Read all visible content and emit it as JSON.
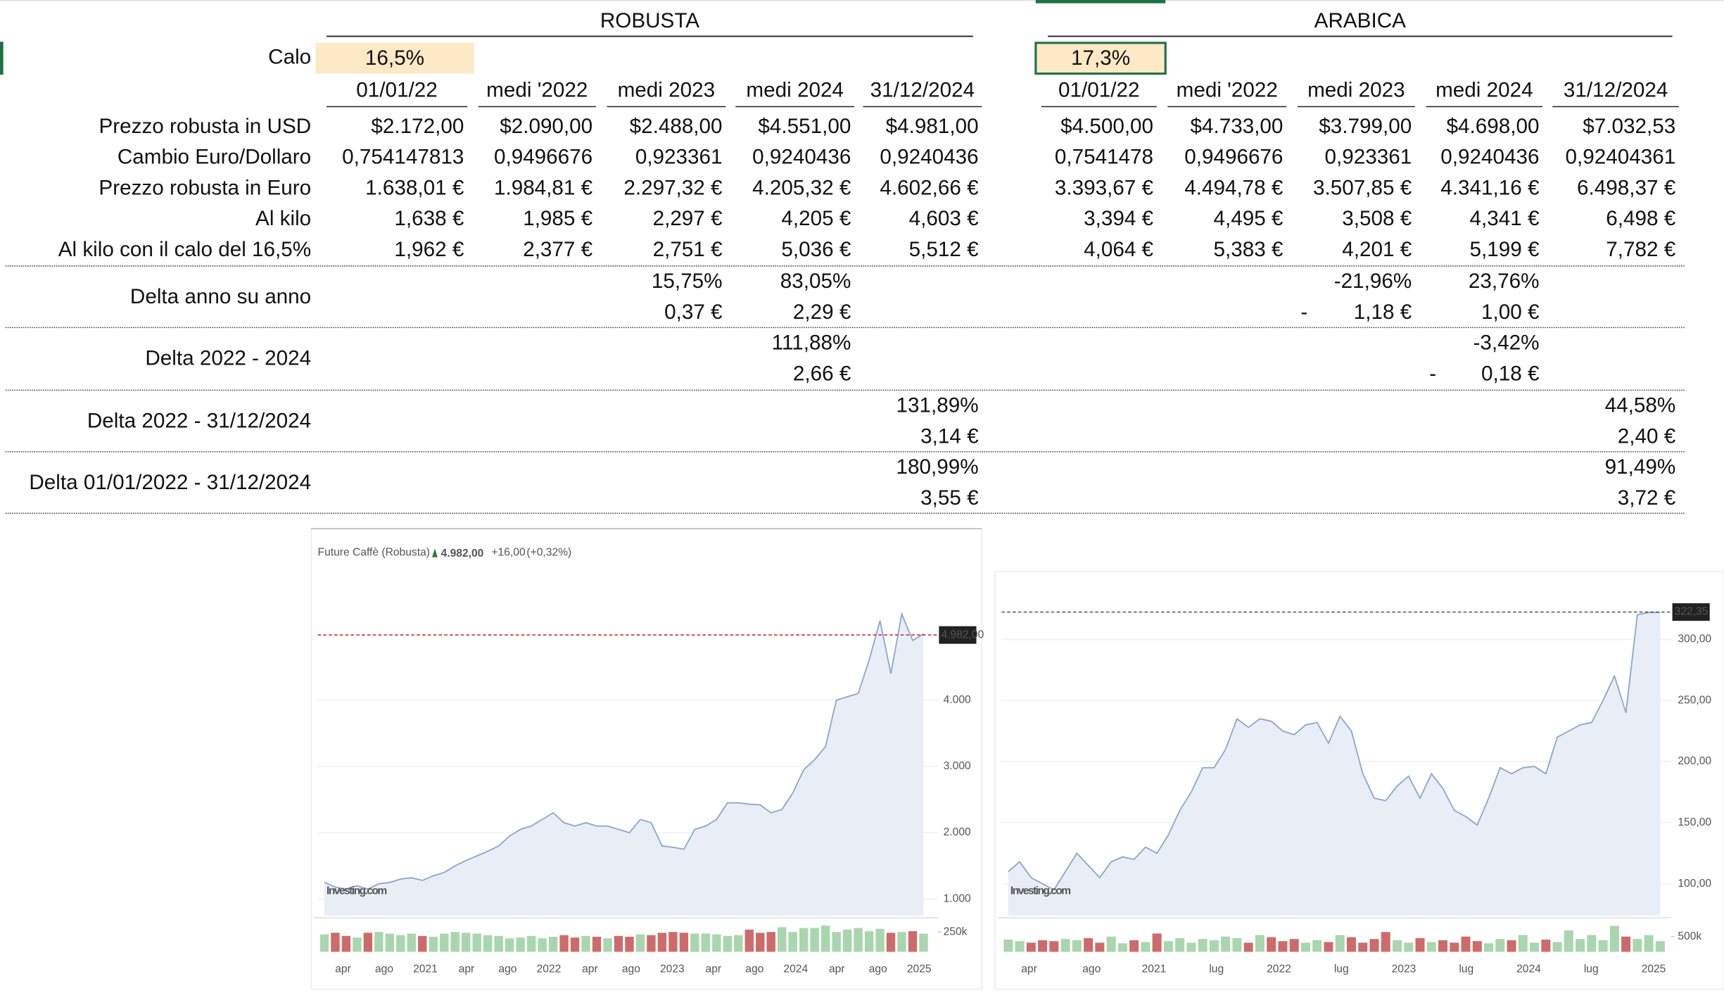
{
  "table": {
    "calo_label": "Calo",
    "row_labels": [
      "Prezzo robusta in USD",
      "Cambio Euro/Dollaro",
      "Prezzo robusta in Euro",
      "Al kilo",
      "Al kilo con il calo del 16,5%"
    ],
    "sections": [
      {
        "title": "ROBUSTA",
        "calo": "16,5%",
        "columns": [
          "01/01/22",
          "medi '2022",
          "medi 2023",
          "medi 2024",
          "31/12/2024"
        ],
        "rows": [
          [
            "$2.172,00",
            "$2.090,00",
            "$2.488,00",
            "$4.551,00",
            "$4.981,00"
          ],
          [
            "0,754147813",
            "0,9496676",
            "0,923361",
            "0,9240436",
            "0,9240436"
          ],
          [
            "1.638,01 €",
            "1.984,81 €",
            "2.297,32 €",
            "4.205,32 €",
            "4.602,66 €"
          ],
          [
            "1,638 €",
            "1,985 €",
            "2,297 €",
            "4,205 €",
            "4,603 €"
          ],
          [
            "1,962 €",
            "2,377 €",
            "2,751 €",
            "5,036 €",
            "5,512 €"
          ]
        ]
      },
      {
        "title": "ARABICA",
        "calo": "17,3%",
        "columns": [
          "01/01/22",
          "medi '2022",
          "medi 2023",
          "medi 2024",
          "31/12/2024"
        ],
        "rows": [
          [
            "$4.500,00",
            "$4.733,00",
            "$3.799,00",
            "$4.698,00",
            "$7.032,53"
          ],
          [
            "0,7541478",
            "0,9496676",
            "0,923361",
            "0,9240436",
            "0,92404361"
          ],
          [
            "3.393,67 €",
            "4.494,78 €",
            "3.507,85 €",
            "4.341,16 €",
            "6.498,37 €"
          ],
          [
            "3,394 €",
            "4,495 €",
            "3,508 €",
            "4,341 €",
            "6,498 €"
          ],
          [
            "4,064 €",
            "5,383 €",
            "4,201 €",
            "5,199 €",
            "7,782 €"
          ]
        ]
      }
    ],
    "deltas": [
      {
        "label": "Delta anno su anno",
        "sections": [
          [
            [
              null,
              null,
              "15,75%",
              "83,05%",
              null
            ],
            [
              null,
              null,
              "0,37 €",
              "2,29 €",
              null
            ]
          ],
          [
            [
              null,
              null,
              "-21,96%",
              "23,76%",
              null
            ],
            [
              null,
              null,
              {
                "sign": "-",
                "amount": "1,18 €"
              },
              "1,00 €",
              null
            ]
          ]
        ]
      },
      {
        "label": "Delta 2022 - 2024",
        "sections": [
          [
            [
              null,
              null,
              null,
              "111,88%",
              null
            ],
            [
              null,
              null,
              null,
              "2,66 €",
              null
            ]
          ],
          [
            [
              null,
              null,
              null,
              "-3,42%",
              null
            ],
            [
              null,
              null,
              null,
              {
                "sign": "-",
                "amount": "0,18 €"
              },
              null
            ]
          ]
        ]
      },
      {
        "label": "Delta 2022 - 31/12/2024",
        "sections": [
          [
            [
              null,
              null,
              null,
              null,
              "131,89%"
            ],
            [
              null,
              null,
              null,
              null,
              "3,14 €"
            ]
          ],
          [
            [
              null,
              null,
              null,
              null,
              "44,58%"
            ],
            [
              null,
              null,
              null,
              null,
              "2,40 €"
            ]
          ]
        ]
      },
      {
        "label": "Delta 01/01/2022 - 31/12/2024",
        "sections": [
          [
            [
              null,
              null,
              null,
              null,
              "180,99%"
            ],
            [
              null,
              null,
              null,
              null,
              "3,55 €"
            ]
          ],
          [
            [
              null,
              null,
              null,
              null,
              "91,49%"
            ],
            [
              null,
              null,
              null,
              null,
              "3,72 €"
            ]
          ]
        ]
      }
    ]
  },
  "chart_data": [
    {
      "type": "line",
      "title": "Future Caffè (Robusta)",
      "price": "4.982,00",
      "change": "+16,00",
      "change_pct": "(+0,32%)",
      "watermark": "Investing.com",
      "color": "#8fa9c8",
      "area_color": "#e9eef6",
      "values": [
        1250,
        1180,
        1150,
        1200,
        1150,
        1230,
        1250,
        1300,
        1320,
        1280,
        1350,
        1400,
        1500,
        1580,
        1650,
        1720,
        1800,
        1950,
        2050,
        2100,
        2200,
        2300,
        2150,
        2100,
        2150,
        2100,
        2100,
        2050,
        2000,
        2200,
        2150,
        1800,
        1780,
        1750,
        2050,
        2100,
        2200,
        2450,
        2450,
        2430,
        2420,
        2300,
        2350,
        2600,
        2950,
        3100,
        3300,
        4000,
        4050,
        4100,
        4600,
        5200,
        4400,
        5300,
        4900,
        5000
      ],
      "ylim": [
        750,
        5740
      ],
      "yticks": [
        {
          "value": 1000,
          "label": "1.000"
        },
        {
          "value": 2000,
          "label": "2.000"
        },
        {
          "value": 3000,
          "label": "3.000"
        },
        {
          "value": 4000,
          "label": "4.000"
        }
      ],
      "last": {
        "value": 4982,
        "label": "4.982,00"
      },
      "last_color": "#c0392b",
      "xtick_labels": [
        "apr",
        "ago",
        "2021",
        "apr",
        "ago",
        "2022",
        "apr",
        "ago",
        "2023",
        "apr",
        "ago",
        "2024",
        "apr",
        "ago",
        "2025"
      ],
      "volume": {
        "ylim": [
          0,
          360000
        ],
        "yticks": [
          {
            "value": 250000,
            "label": "250k"
          }
        ],
        "up_color": "#a9d6ae",
        "down_color": "#cd6b6b",
        "values": [
          220000,
          240000,
          200000,
          180000,
          240000,
          250000,
          230000,
          210000,
          230000,
          200000,
          190000,
          230000,
          250000,
          240000,
          230000,
          210000,
          200000,
          170000,
          180000,
          200000,
          170000,
          190000,
          210000,
          180000,
          200000,
          190000,
          170000,
          200000,
          190000,
          220000,
          210000,
          240000,
          250000,
          240000,
          230000,
          230000,
          220000,
          200000,
          210000,
          280000,
          240000,
          250000,
          310000,
          250000,
          300000,
          300000,
          330000,
          250000,
          280000,
          300000,
          260000,
          290000,
          240000,
          250000,
          260000,
          230000
        ]
      }
    },
    {
      "type": "line",
      "watermark": "Investing.com",
      "color": "#8fa9c8",
      "area_color": "#e9eef6",
      "values": [
        110,
        118,
        105,
        100,
        95,
        110,
        125,
        115,
        105,
        118,
        122,
        120,
        130,
        125,
        140,
        160,
        175,
        195,
        195,
        210,
        235,
        228,
        235,
        233,
        225,
        222,
        230,
        232,
        215,
        237,
        225,
        190,
        170,
        168,
        180,
        188,
        170,
        190,
        178,
        160,
        155,
        148,
        170,
        195,
        190,
        195,
        196,
        190,
        220,
        225,
        230,
        232,
        250,
        270,
        240,
        320,
        322,
        322
      ],
      "ylim": [
        74,
        342
      ],
      "yticks": [
        {
          "value": 100,
          "label": "100,00"
        },
        {
          "value": 150,
          "label": "150,00"
        },
        {
          "value": 200,
          "label": "200,00"
        },
        {
          "value": 250,
          "label": "250,00"
        },
        {
          "value": 300,
          "label": "300,00"
        }
      ],
      "last": {
        "value": 322.35,
        "label": "322,35"
      },
      "last_color": "#555555",
      "xtick_labels": [
        "apr",
        "ago",
        "2021",
        "lug",
        "2022",
        "lug",
        "2023",
        "lug",
        "2024",
        "lug",
        "2025"
      ],
      "volume": {
        "ylim": [
          0,
          900000
        ],
        "yticks": [
          {
            "value": 500000,
            "label": "500k"
          }
        ],
        "up_color": "#a9d6ae",
        "down_color": "#cd6b6b",
        "values": [
          400000,
          350000,
          300000,
          380000,
          350000,
          420000,
          380000,
          450000,
          300000,
          500000,
          280000,
          380000,
          320000,
          600000,
          350000,
          450000,
          300000,
          420000,
          380000,
          500000,
          450000,
          300000,
          550000,
          480000,
          350000,
          420000,
          300000,
          380000,
          320000,
          550000,
          480000,
          300000,
          420000,
          650000,
          380000,
          300000,
          450000,
          320000,
          380000,
          300000,
          500000,
          350000,
          280000,
          420000,
          380000,
          550000,
          300000,
          400000,
          320000,
          700000,
          420000,
          550000,
          380000,
          850000,
          500000,
          420000,
          550000,
          350000
        ]
      }
    }
  ]
}
